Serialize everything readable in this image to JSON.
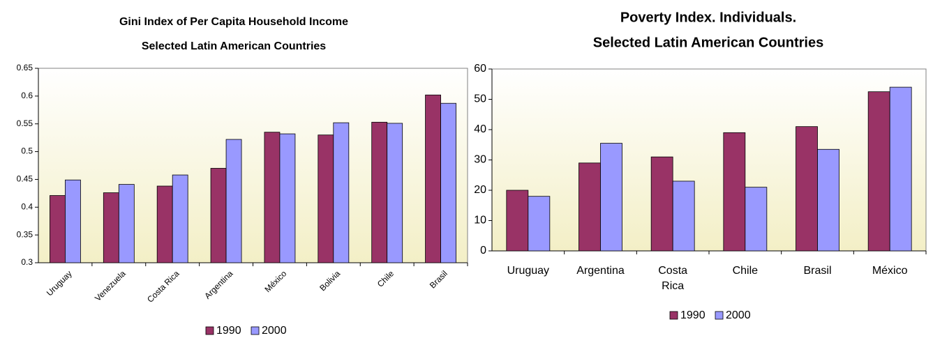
{
  "chart_data": [
    {
      "type": "bar",
      "title": "Gini Index of Per Capita Household Income",
      "subtitle": "Selected Latin American Countries",
      "categories": [
        "Uruguay",
        "Venezuela",
        "Costa Rica",
        "Argentina",
        "México",
        "Bolivia",
        "Chile",
        "Brasil"
      ],
      "series": [
        {
          "name": "1990",
          "color": "#993366",
          "values": [
            0.421,
            0.426,
            0.438,
            0.47,
            0.535,
            0.53,
            0.553,
            0.602
          ]
        },
        {
          "name": "2000",
          "color": "#9999ff",
          "values": [
            0.449,
            0.441,
            0.458,
            0.522,
            0.532,
            0.552,
            0.551,
            0.587
          ]
        }
      ],
      "ylim": [
        0.3,
        0.65
      ],
      "yticks": [
        0.3,
        0.35,
        0.4,
        0.45,
        0.5,
        0.55,
        0.6,
        0.65
      ],
      "grid": false,
      "legend": "bottom"
    },
    {
      "type": "bar",
      "title": "Poverty Index. Individuals.",
      "subtitle": "Selected Latin American Countries",
      "categories": [
        "Uruguay",
        "Argentina",
        "Costa Rica",
        "Chile",
        "Brasil",
        "México"
      ],
      "series": [
        {
          "name": "1990",
          "color": "#993366",
          "values": [
            20,
            29,
            31,
            39,
            41,
            52.5
          ]
        },
        {
          "name": "2000",
          "color": "#9999ff",
          "values": [
            18,
            35.5,
            23,
            21,
            33.5,
            54
          ]
        }
      ],
      "ylim": [
        0,
        60
      ],
      "yticks": [
        0,
        10,
        20,
        30,
        40,
        50,
        60
      ],
      "grid": false,
      "legend": "bottom"
    }
  ]
}
